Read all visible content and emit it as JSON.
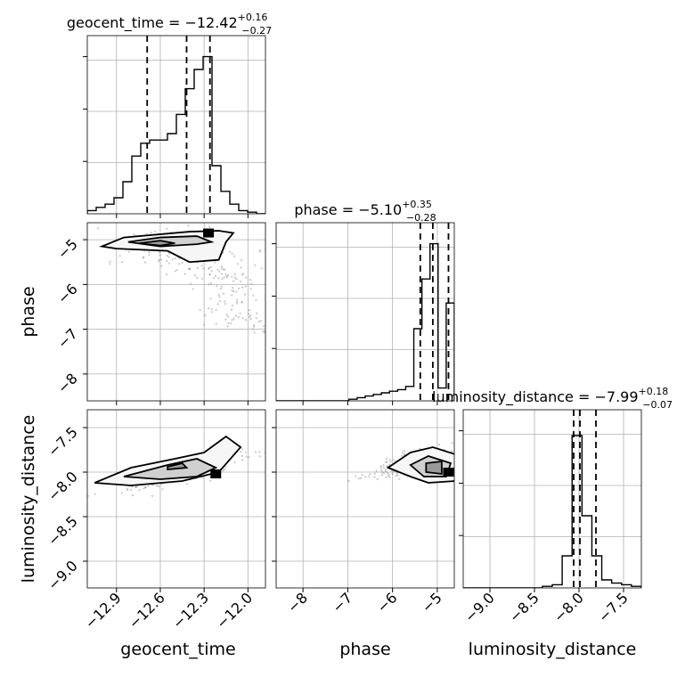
{
  "chart_data": {
    "type": "corner",
    "grid": true,
    "parameters": [
      {
        "name": "geocent_time",
        "axis_label": "geocent_time",
        "title": {
          "prefix": "geocent_time = ",
          "median": "−12.42",
          "plus": "+0.16",
          "minus": "−0.27"
        },
        "range": [
          -13.1,
          -11.88
        ],
        "ticks": [
          -12.9,
          -12.6,
          -12.3,
          -12.0
        ],
        "tick_labels": [
          "−12.9",
          "−12.6",
          "−12.3",
          "−12.0"
        ],
        "quantiles": [
          -12.69,
          -12.42,
          -12.26
        ],
        "histogram": [
          0.02,
          0.04,
          0.06,
          0.1,
          0.2,
          0.36,
          0.44,
          0.46,
          0.46,
          0.5,
          0.62,
          0.78,
          0.9,
          0.98,
          0.3,
          0.14,
          0.06,
          0.02,
          0.01,
          0.0
        ],
        "hist_ylim": [
          0,
          1.0
        ]
      },
      {
        "name": "phase",
        "axis_label": "phase",
        "title": {
          "prefix": "phase = ",
          "median": "−5.10",
          "plus": "+0.35",
          "minus": "−0.28"
        },
        "range": [
          -8.6,
          -4.62
        ],
        "ticks": [
          -8,
          -7,
          -6,
          -5
        ],
        "tick_labels": [
          "−8",
          "−7",
          "−6",
          "−5"
        ],
        "quantiles": [
          -5.38,
          -5.1,
          -4.75
        ],
        "histogram": [
          0.0,
          0.0,
          0.0,
          0.0,
          0.0,
          0.0,
          0.0,
          0.0,
          0.0,
          0.01,
          0.02,
          0.03,
          0.04,
          0.05,
          0.06,
          0.07,
          0.09,
          0.45,
          0.76,
          0.98,
          0.08,
          0.61
        ],
        "hist_ylim": [
          0,
          1.0
        ]
      },
      {
        "name": "luminosity_distance",
        "axis_label": "luminosity_distance",
        "title": {
          "prefix": "luminosity_distance = ",
          "median": "−7.99",
          "plus": "+0.18",
          "minus": "−0.07"
        },
        "range": [
          -9.3,
          -7.3
        ],
        "ticks": [
          -9.0,
          -8.5,
          -8.0,
          -7.5
        ],
        "tick_labels": [
          "−9.0",
          "−8.5",
          "−8.0",
          "−7.5"
        ],
        "quantiles": [
          -8.06,
          -7.99,
          -7.81
        ],
        "histogram": [
          0.0,
          0.0,
          0.0,
          0.0,
          0.0,
          0.0,
          0.0,
          0.0,
          0.01,
          0.02,
          0.2,
          0.95,
          0.45,
          0.2,
          0.05,
          0.03,
          0.02,
          0.01
        ],
        "hist_ylim": [
          0,
          1.0
        ]
      }
    ]
  }
}
